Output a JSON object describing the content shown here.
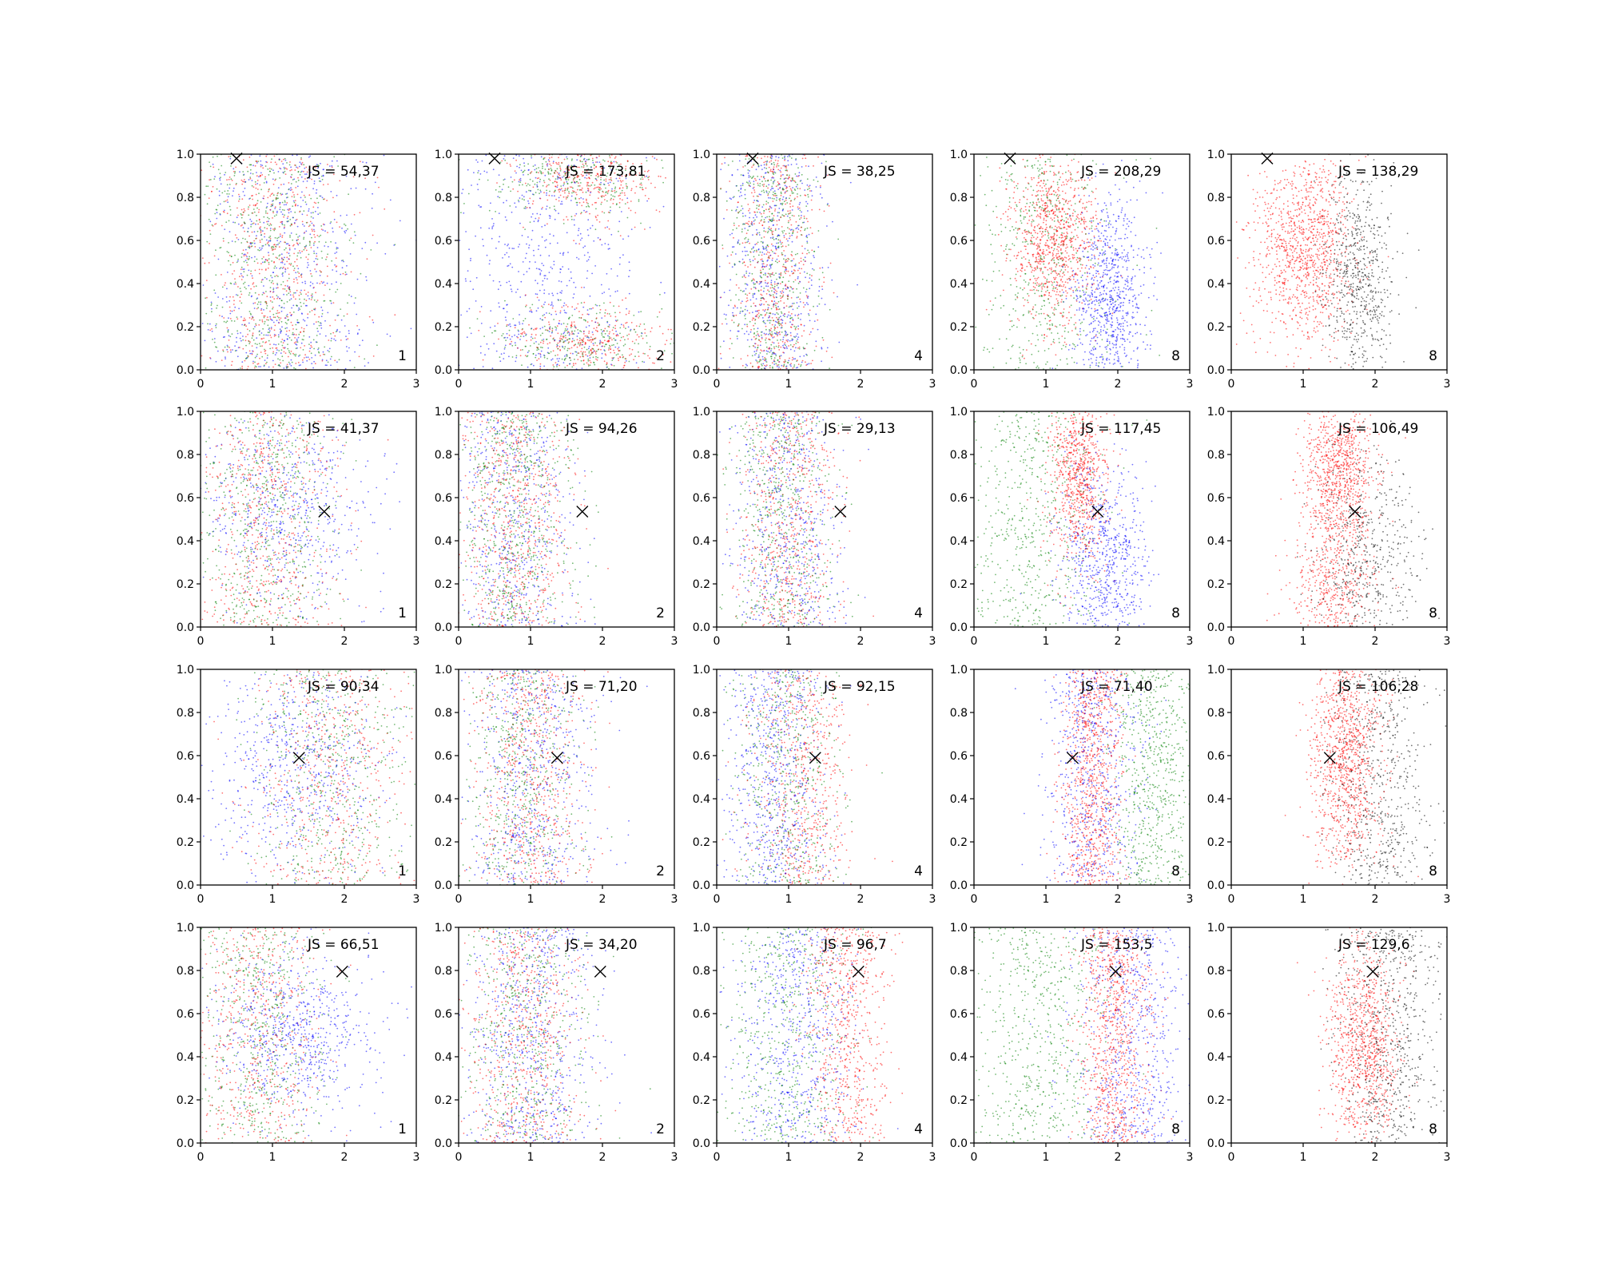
{
  "colors": {
    "red": "#ff0000",
    "green": "#008000",
    "blue": "#0000ff",
    "black": "#000000"
  },
  "marker_icon": "x-marker",
  "chart_data": {
    "type": "scatter",
    "grid": false,
    "rows": 4,
    "cols": 5,
    "xlim": [
      0,
      3
    ],
    "ylim": [
      0,
      1
    ],
    "xticks": [
      "0",
      "1",
      "2",
      "3"
    ],
    "yticks": [
      "0.0",
      "0.2",
      "0.4",
      "0.6",
      "0.8",
      "1.0"
    ],
    "panels": [
      {
        "row": 0,
        "col": 0,
        "js_label": "JS = 54,37",
        "corner_label": "1",
        "marker": [
          0.5,
          0.98
        ],
        "clusters": [
          {
            "color": "red",
            "cx": 1.0,
            "sx": 0.55,
            "dist": "uniform",
            "n": 600
          },
          {
            "color": "green",
            "cx": 1.0,
            "sx": 0.55,
            "dist": "uniform",
            "n": 600
          },
          {
            "color": "blue",
            "cx": 1.2,
            "sx": 0.6,
            "dist": "uniform",
            "n": 600
          }
        ]
      },
      {
        "row": 0,
        "col": 1,
        "js_label": "JS = 173,81",
        "corner_label": "2",
        "marker": [
          0.5,
          0.98
        ],
        "clusters": [
          {
            "color": "red",
            "cx": 1.8,
            "sx": 0.5,
            "cy": 0.12,
            "sy": 0.09,
            "n": 350
          },
          {
            "color": "red",
            "cx": 1.8,
            "sx": 0.5,
            "cy": 0.88,
            "sy": 0.09,
            "n": 350
          },
          {
            "color": "green",
            "cx": 1.6,
            "sx": 0.6,
            "cy": 0.12,
            "sy": 0.1,
            "n": 300
          },
          {
            "color": "green",
            "cx": 1.6,
            "sx": 0.6,
            "cy": 0.88,
            "sy": 0.1,
            "n": 300
          },
          {
            "color": "blue",
            "cx": 1.2,
            "sx": 0.65,
            "dist": "uniform",
            "n": 600
          }
        ]
      },
      {
        "row": 0,
        "col": 2,
        "js_label": "JS = 38,25",
        "corner_label": "4",
        "marker": [
          0.5,
          0.98
        ],
        "clusters": [
          {
            "color": "red",
            "cx": 0.8,
            "sx": 0.3,
            "dist": "uniform",
            "n": 550
          },
          {
            "color": "green",
            "cx": 0.8,
            "sx": 0.3,
            "dist": "uniform",
            "n": 550
          },
          {
            "color": "blue",
            "cx": 0.8,
            "sx": 0.35,
            "dist": "uniform",
            "n": 550
          }
        ]
      },
      {
        "row": 0,
        "col": 3,
        "js_label": "JS = 208,29",
        "corner_label": "8",
        "marker": [
          0.5,
          0.98
        ],
        "clusters": [
          {
            "color": "red",
            "cx": 1.1,
            "sx": 0.3,
            "cy": 0.6,
            "sy": 0.2,
            "n": 900
          },
          {
            "color": "green",
            "cx": 1.0,
            "sx": 0.45,
            "dist": "uniform",
            "n": 500
          },
          {
            "color": "blue",
            "cx": 1.9,
            "sx": 0.25,
            "cy": 0.35,
            "sy": 0.22,
            "n": 800
          }
        ]
      },
      {
        "row": 0,
        "col": 4,
        "js_label": "JS = 138,29",
        "corner_label": "8",
        "marker": [
          0.5,
          0.98
        ],
        "clusters": [
          {
            "color": "red",
            "cx": 1.0,
            "sx": 0.35,
            "cy": 0.55,
            "sy": 0.22,
            "n": 1100
          },
          {
            "color": "black",
            "cx": 1.75,
            "sx": 0.25,
            "cy": 0.4,
            "sy": 0.25,
            "n": 650
          }
        ]
      },
      {
        "row": 1,
        "col": 0,
        "js_label": "JS = 41,37",
        "corner_label": "1",
        "marker": [
          1.72,
          0.535
        ],
        "clusters": [
          {
            "color": "red",
            "cx": 0.9,
            "sx": 0.5,
            "dist": "uniform",
            "n": 600
          },
          {
            "color": "green",
            "cx": 0.9,
            "sx": 0.5,
            "dist": "uniform",
            "n": 600
          },
          {
            "color": "blue",
            "cx": 1.2,
            "sx": 0.6,
            "cy": 0.55,
            "sy": 0.25,
            "n": 600
          }
        ]
      },
      {
        "row": 1,
        "col": 1,
        "js_label": "JS = 94,26",
        "corner_label": "2",
        "marker": [
          1.72,
          0.535
        ],
        "clusters": [
          {
            "color": "red",
            "cx": 0.8,
            "sx": 0.4,
            "dist": "uniform",
            "n": 650
          },
          {
            "color": "green",
            "cx": 0.8,
            "sx": 0.4,
            "dist": "uniform",
            "n": 650
          },
          {
            "color": "blue",
            "cx": 0.8,
            "sx": 0.45,
            "dist": "uniform",
            "n": 550
          }
        ]
      },
      {
        "row": 1,
        "col": 2,
        "js_label": "JS = 29,13",
        "corner_label": "4",
        "marker": [
          1.72,
          0.535
        ],
        "clusters": [
          {
            "color": "red",
            "cx": 1.0,
            "sx": 0.35,
            "dist": "uniform",
            "n": 600
          },
          {
            "color": "green",
            "cx": 0.9,
            "sx": 0.35,
            "dist": "uniform",
            "n": 550
          },
          {
            "color": "blue",
            "cx": 1.0,
            "sx": 0.4,
            "dist": "uniform",
            "n": 550
          }
        ]
      },
      {
        "row": 1,
        "col": 3,
        "js_label": "JS = 117,45",
        "corner_label": "8",
        "marker": [
          1.72,
          0.535
        ],
        "clusters": [
          {
            "color": "red",
            "cx": 1.45,
            "sx": 0.2,
            "cy": 0.7,
            "sy": 0.2,
            "n": 800
          },
          {
            "color": "green",
            "cx": 0.8,
            "sx": 0.45,
            "dist": "uniform",
            "n": 550
          },
          {
            "color": "blue",
            "cx": 1.8,
            "sx": 0.3,
            "cy": 0.3,
            "sy": 0.22,
            "n": 700
          }
        ]
      },
      {
        "row": 1,
        "col": 4,
        "js_label": "JS = 106,49",
        "corner_label": "8",
        "marker": [
          1.72,
          0.535
        ],
        "clusters": [
          {
            "color": "red",
            "cx": 1.5,
            "sx": 0.25,
            "cy": 0.72,
            "sy": 0.18,
            "n": 900
          },
          {
            "color": "red",
            "cx": 1.4,
            "sx": 0.3,
            "cy": 0.2,
            "sy": 0.15,
            "n": 450
          },
          {
            "color": "black",
            "cx": 1.9,
            "sx": 0.35,
            "cy": 0.3,
            "sy": 0.25,
            "n": 550
          }
        ]
      },
      {
        "row": 2,
        "col": 0,
        "js_label": "JS = 90,34",
        "corner_label": "1",
        "marker": [
          1.37,
          0.59
        ],
        "clusters": [
          {
            "color": "red",
            "cx": 1.8,
            "sx": 0.55,
            "dist": "uniform",
            "n": 550
          },
          {
            "color": "green",
            "cx": 1.8,
            "sx": 0.55,
            "dist": "uniform",
            "n": 550
          },
          {
            "color": "blue",
            "cx": 1.3,
            "sx": 0.6,
            "cy": 0.55,
            "sy": 0.25,
            "n": 650
          }
        ]
      },
      {
        "row": 2,
        "col": 1,
        "js_label": "JS = 71,20",
        "corner_label": "2",
        "marker": [
          1.37,
          0.59
        ],
        "clusters": [
          {
            "color": "red",
            "cx": 1.0,
            "sx": 0.4,
            "dist": "uniform",
            "n": 650
          },
          {
            "color": "green",
            "cx": 0.9,
            "sx": 0.4,
            "dist": "uniform",
            "n": 550
          },
          {
            "color": "blue",
            "cx": 1.0,
            "sx": 0.45,
            "dist": "uniform",
            "n": 600
          }
        ]
      },
      {
        "row": 2,
        "col": 2,
        "js_label": "JS = 92,15",
        "corner_label": "4",
        "marker": [
          1.37,
          0.59
        ],
        "clusters": [
          {
            "color": "red",
            "cx": 1.2,
            "sx": 0.35,
            "dist": "uniform",
            "n": 600
          },
          {
            "color": "green",
            "cx": 1.0,
            "sx": 0.4,
            "dist": "uniform",
            "n": 500
          },
          {
            "color": "blue",
            "cx": 0.8,
            "sx": 0.35,
            "dist": "uniform",
            "n": 650
          }
        ]
      },
      {
        "row": 2,
        "col": 3,
        "js_label": "JS = 71,40",
        "corner_label": "8",
        "marker": [
          1.37,
          0.59
        ],
        "clusters": [
          {
            "color": "red",
            "cx": 1.65,
            "sx": 0.2,
            "dist": "uniform",
            "n": 850
          },
          {
            "color": "blue",
            "cx": 1.65,
            "sx": 0.35,
            "dist": "uniform",
            "n": 650
          },
          {
            "color": "green",
            "cx": 2.5,
            "sx": 0.3,
            "dist": "uniform",
            "n": 650
          }
        ]
      },
      {
        "row": 2,
        "col": 4,
        "js_label": "JS = 106,28",
        "corner_label": "8",
        "marker": [
          1.37,
          0.59
        ],
        "clusters": [
          {
            "color": "red",
            "cx": 1.6,
            "sx": 0.25,
            "cy": 0.6,
            "sy": 0.25,
            "n": 1050
          },
          {
            "color": "black",
            "cx": 2.1,
            "sx": 0.35,
            "dist": "uniform",
            "n": 600
          }
        ]
      },
      {
        "row": 3,
        "col": 0,
        "js_label": "JS = 66,51",
        "corner_label": "1",
        "marker": [
          1.97,
          0.795
        ],
        "clusters": [
          {
            "color": "red",
            "cx": 0.8,
            "sx": 0.45,
            "dist": "uniform",
            "n": 550
          },
          {
            "color": "green",
            "cx": 0.8,
            "sx": 0.45,
            "dist": "uniform",
            "n": 550
          },
          {
            "color": "blue",
            "cx": 1.3,
            "sx": 0.55,
            "cy": 0.5,
            "sy": 0.2,
            "n": 700
          }
        ]
      },
      {
        "row": 3,
        "col": 1,
        "js_label": "JS = 34,20",
        "corner_label": "2",
        "marker": [
          1.97,
          0.795
        ],
        "clusters": [
          {
            "color": "red",
            "cx": 0.9,
            "sx": 0.4,
            "dist": "uniform",
            "n": 600
          },
          {
            "color": "green",
            "cx": 0.9,
            "sx": 0.45,
            "dist": "uniform",
            "n": 550
          },
          {
            "color": "blue",
            "cx": 1.0,
            "sx": 0.45,
            "dist": "uniform",
            "n": 650
          }
        ]
      },
      {
        "row": 3,
        "col": 2,
        "js_label": "JS = 96,7",
        "corner_label": "4",
        "marker": [
          1.97,
          0.795
        ],
        "clusters": [
          {
            "color": "green",
            "cx": 1.0,
            "sx": 0.45,
            "dist": "uniform",
            "n": 550
          },
          {
            "color": "blue",
            "cx": 1.1,
            "sx": 0.4,
            "dist": "uniform",
            "n": 600
          },
          {
            "color": "red",
            "cx": 1.8,
            "sx": 0.3,
            "dist": "uniform",
            "n": 650
          }
        ]
      },
      {
        "row": 3,
        "col": 3,
        "js_label": "JS = 153,5",
        "corner_label": "8",
        "marker": [
          1.97,
          0.795
        ],
        "clusters": [
          {
            "color": "green",
            "cx": 0.9,
            "sx": 0.5,
            "dist": "uniform",
            "n": 600
          },
          {
            "color": "red",
            "cx": 1.95,
            "sx": 0.25,
            "dist": "uniform",
            "n": 850
          },
          {
            "color": "blue",
            "cx": 2.2,
            "sx": 0.4,
            "dist": "uniform",
            "n": 650
          }
        ]
      },
      {
        "row": 3,
        "col": 4,
        "js_label": "JS = 129,6",
        "corner_label": "8",
        "marker": [
          1.97,
          0.795
        ],
        "clusters": [
          {
            "color": "red",
            "cx": 1.85,
            "sx": 0.25,
            "cy": 0.45,
            "sy": 0.25,
            "n": 950
          },
          {
            "color": "black",
            "cx": 2.2,
            "sx": 0.35,
            "dist": "uniform",
            "n": 650
          }
        ]
      }
    ]
  }
}
